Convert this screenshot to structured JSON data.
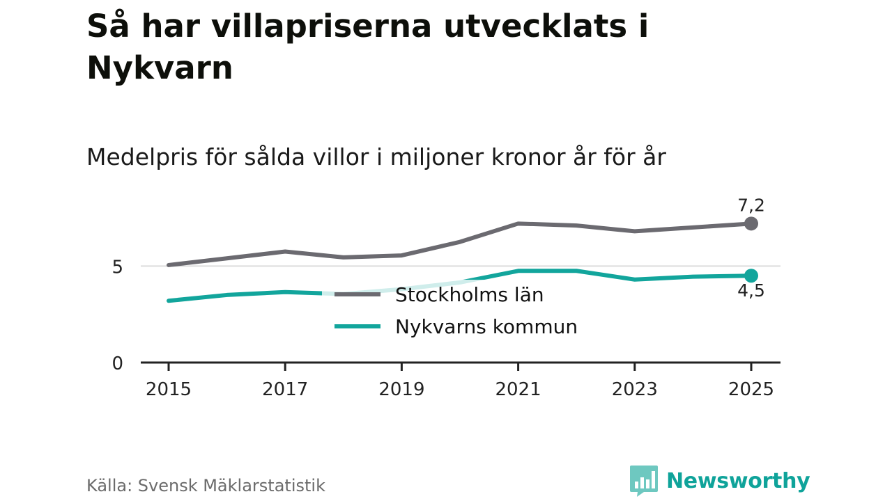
{
  "header": {
    "title": "Så har villapriserna utvecklats i Nykvarn",
    "subtitle": "Medelpris för sålda villor i miljoner kronor år för år"
  },
  "footer": {
    "source": "Källa: Svensk Mäklarstatistik",
    "brand": "Newsworthy",
    "brand_icon": "bar-chart-speech-bubble-icon"
  },
  "colors": {
    "stockholm": "#6b6a70",
    "nykvarn": "#12a59c",
    "gridline": "#dddddd",
    "axis": "#222222",
    "brand": "#0fa39a"
  },
  "chart_data": {
    "type": "line",
    "x": [
      2015,
      2016,
      2017,
      2018,
      2019,
      2020,
      2021,
      2022,
      2023,
      2024,
      2025
    ],
    "xticks": [
      "2015",
      "2017",
      "2019",
      "2021",
      "2023",
      "2025"
    ],
    "yticks": [
      "0",
      "5"
    ],
    "ylim": [
      0,
      7.5
    ],
    "grid": "horizontal",
    "legend_position": "center",
    "series": [
      {
        "name": "Stockholms län",
        "values": [
          5.05,
          5.4,
          5.75,
          5.45,
          5.55,
          6.25,
          7.2,
          7.1,
          6.8,
          7.0,
          7.2
        ],
        "end_label": "7,2"
      },
      {
        "name": "Nykvarns kommun",
        "values": [
          3.2,
          3.5,
          3.65,
          3.55,
          3.8,
          4.15,
          4.75,
          4.75,
          4.3,
          4.45,
          4.5
        ],
        "end_label": "4,5"
      }
    ]
  }
}
